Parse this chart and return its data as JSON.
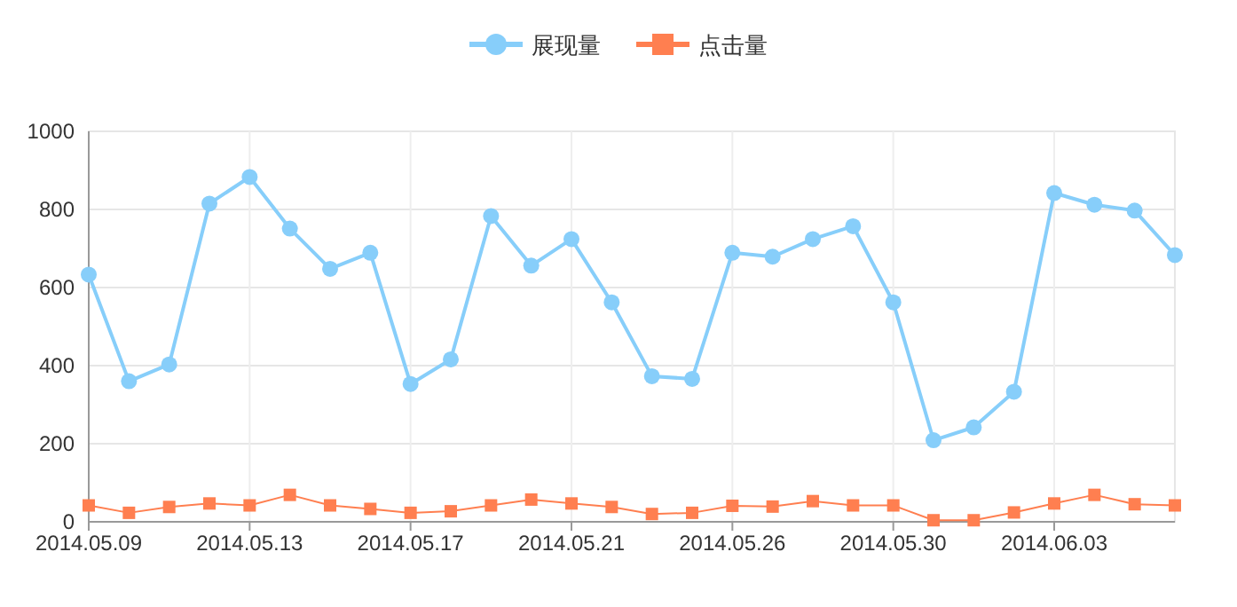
{
  "chart_data": {
    "type": "line",
    "categories": [
      "2014.05.09",
      null,
      null,
      null,
      "2014.05.13",
      null,
      null,
      null,
      "2014.05.17",
      null,
      null,
      null,
      "2014.05.21",
      null,
      null,
      null,
      "2014.05.26",
      null,
      null,
      null,
      "2014.05.30",
      null,
      null,
      null,
      "2014.06.03",
      null,
      null,
      null
    ],
    "series": [
      {
        "name": "展现量",
        "color": "#87cefa",
        "marker": "circle",
        "values": [
          633,
          360,
          403,
          815,
          883,
          751,
          648,
          689,
          353,
          416,
          783,
          656,
          724,
          562,
          373,
          366,
          689,
          679,
          724,
          757,
          562,
          209,
          242,
          333,
          842,
          812,
          797,
          683
        ]
      },
      {
        "name": "点击量",
        "color": "#ff7f50",
        "marker": "square",
        "values": [
          42,
          23,
          38,
          47,
          42,
          69,
          42,
          33,
          23,
          27,
          42,
          57,
          47,
          38,
          20,
          23,
          41,
          39,
          53,
          42,
          42,
          4,
          4,
          24,
          47,
          69,
          45,
          42
        ]
      }
    ],
    "ylim": [
      0,
      1000
    ],
    "yticks": [
      0,
      200,
      400,
      600,
      800,
      1000
    ],
    "grid": true,
    "legend": "top",
    "line_style": "solid"
  }
}
